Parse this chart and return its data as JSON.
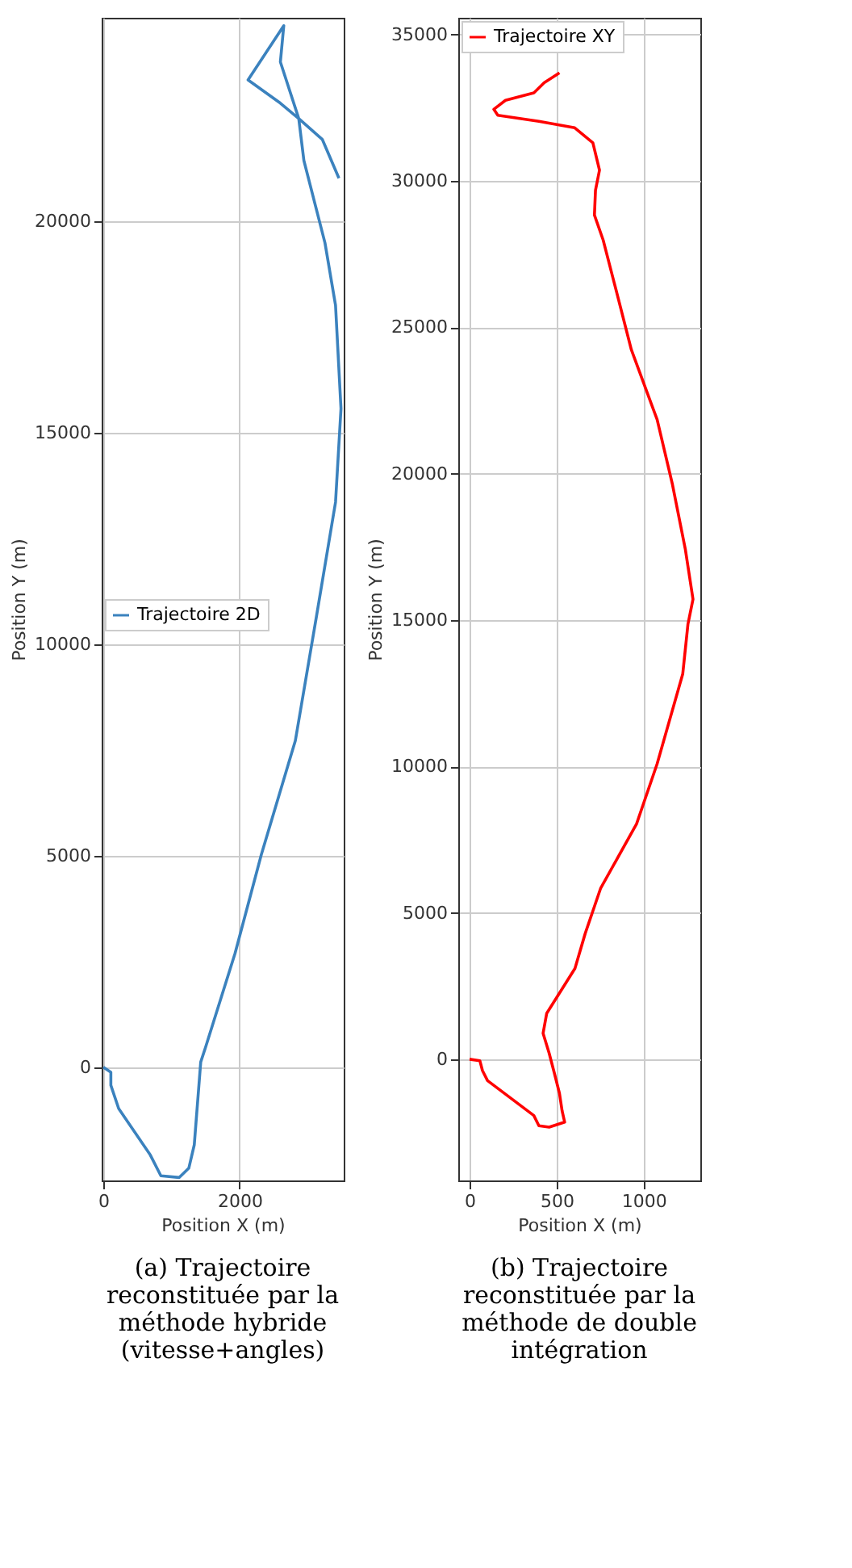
{
  "chart_data": [
    {
      "type": "line",
      "xlabel": "Position X (m)",
      "ylabel": "Position Y (m)",
      "xlim": [
        -25,
        3530
      ],
      "ylim": [
        -2680,
        24815
      ],
      "xticks": [
        0,
        2000
      ],
      "yticks": [
        0,
        5000,
        10000,
        15000,
        20000
      ],
      "grid": true,
      "legend": "left",
      "annotations": [
        "(a) Trajectoire reconstituée par la méthode hybride (vitesse+angles)"
      ],
      "series": [
        {
          "name": "Trajectoire 2D",
          "color": "#3b82be",
          "x": [
            0,
            110,
            110,
            225,
            690,
            845,
            1115,
            1255,
            1335,
            1430,
            1505,
            1935,
            2320,
            2820,
            3130,
            3410,
            3490,
            3410,
            3255,
            2945,
            2870,
            2600,
            2650,
            2125,
            2600,
            2870,
            3215,
            3460
          ],
          "values": [
            0,
            -120,
            -430,
            -980,
            -2080,
            -2570,
            -2610,
            -2390,
            -1840,
            120,
            490,
            2695,
            5025,
            7720,
            10660,
            13360,
            15570,
            18015,
            19490,
            21440,
            22430,
            23770,
            24630,
            23345,
            22795,
            22430,
            21940,
            21020
          ]
        }
      ]
    },
    {
      "type": "line",
      "xlabel": "Position X (m)",
      "ylabel": "Position Y (m)",
      "xlim": [
        -65,
        1325
      ],
      "ylim": [
        -4140,
        35570
      ],
      "xticks": [
        0,
        500,
        1000
      ],
      "yticks": [
        0,
        5000,
        10000,
        15000,
        20000,
        25000,
        30000,
        35000
      ],
      "grid": true,
      "legend": "top left",
      "annotations": [
        "(b) Trajectoire reconstituée par la méthode de double intégration"
      ],
      "series": [
        {
          "name": "Trajectoire XY",
          "color": "#ff0000",
          "x": [
            0,
            59,
            74,
            103,
            369,
            398,
            457,
            546,
            531,
            516,
            487,
            457,
            422,
            443,
            605,
            664,
            752,
            959,
            1077,
            1224,
            1254,
            1283,
            1239,
            1165,
            1077,
            929,
            841,
            767,
            717,
            723,
            746,
            708,
            604,
            398,
            162,
            139,
            206,
            369,
            428,
            516
          ],
          "values": [
            0,
            -50,
            -390,
            -730,
            -1925,
            -2270,
            -2320,
            -2150,
            -1755,
            -1160,
            -480,
            205,
            885,
            1570,
            3100,
            4295,
            5830,
            8040,
            10090,
            13155,
            14860,
            15710,
            17415,
            19630,
            21845,
            24230,
            26275,
            27980,
            28830,
            29680,
            30365,
            31300,
            31810,
            32035,
            32240,
            32445,
            32750,
            33005,
            33350,
            33690
          ]
        }
      ]
    }
  ]
}
